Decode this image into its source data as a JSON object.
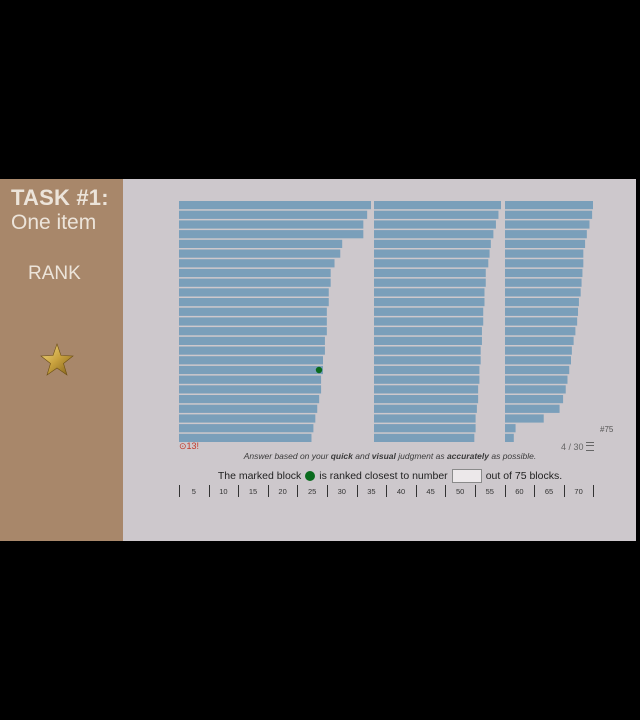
{
  "sidebar": {
    "task_title": "TASK #1:",
    "task_subtitle": "One item",
    "rank_label": "RANK",
    "star_icon": "gold-star-icon"
  },
  "chart_data": {
    "type": "bar",
    "orientation": "horizontal",
    "title": "",
    "total_blocks": 75,
    "marked_block_index": 18,
    "marked_color": "#0a6b1e",
    "bar_color": "#7a9fba",
    "columns": [
      {
        "values": [
          100,
          98,
          96,
          96,
          85,
          84,
          81,
          79,
          79,
          78,
          78,
          77,
          77,
          77,
          76,
          76,
          75,
          75,
          74,
          74,
          73,
          72,
          71,
          70,
          69
        ]
      },
      {
        "values": [
          100,
          98,
          96,
          94,
          92,
          91,
          90,
          88,
          88,
          87,
          87,
          86,
          86,
          85,
          85,
          84,
          84,
          83,
          83,
          82,
          82,
          81,
          80,
          80,
          79
        ]
      },
      {
        "values": [
          100,
          99,
          96,
          93,
          91,
          89,
          89,
          88,
          87,
          86,
          84,
          83,
          82,
          80,
          78,
          76,
          75,
          73,
          71,
          69,
          66,
          62,
          44,
          12,
          10
        ]
      }
    ],
    "last_label": "#75"
  },
  "status": {
    "timer": "⊙13!",
    "progress": "4 / 30"
  },
  "instruction": {
    "pre": "Answer based on your ",
    "quick": "quick",
    "mid": " and ",
    "visual": "visual",
    "mid2": " judgment as ",
    "accurately": "accurately",
    "post": " as possible."
  },
  "question": {
    "before": "The marked block",
    "middle": "is ranked closest to number",
    "after": "out of 75 blocks.",
    "answer_value": "",
    "answer_placeholder": ""
  },
  "scale": {
    "labels": [
      "5",
      "10",
      "15",
      "20",
      "25",
      "30",
      "35",
      "40",
      "45",
      "50",
      "55",
      "60",
      "65",
      "70"
    ]
  }
}
